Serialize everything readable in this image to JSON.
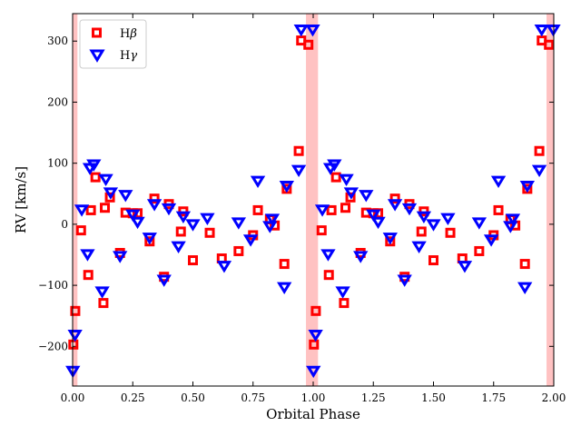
{
  "chart_data": {
    "type": "scatter",
    "title": "",
    "xlabel": "Orbital Phase",
    "ylabel": "RV [km/s]",
    "xlim": [
      0.0,
      2.0
    ],
    "ylim": [
      -265,
      345
    ],
    "xticks": [
      0.0,
      0.25,
      0.5,
      0.75,
      1.0,
      1.25,
      1.5,
      1.75,
      2.0
    ],
    "xtick_labels": [
      "0.00",
      "0.25",
      "0.50",
      "0.75",
      "1.00",
      "1.25",
      "1.50",
      "1.75",
      "2.00"
    ],
    "yticks": [
      -200,
      -100,
      0,
      100,
      200,
      300
    ],
    "ytick_labels": [
      "−200",
      "−100",
      "0",
      "100",
      "200",
      "300"
    ],
    "legend_position": "top-left",
    "eclipse_bands": [
      {
        "x0": 0.0,
        "x1": 0.02
      },
      {
        "x0": 0.97,
        "x1": 1.02
      },
      {
        "x0": 1.97,
        "x1": 2.0
      }
    ],
    "colors": {
      "hbeta": "#ff0000",
      "hgamma": "#0000ff",
      "band": "#ff9999"
    },
    "series": [
      {
        "name": "Hβ",
        "name_base": "H",
        "name_greek": "β",
        "marker": "square",
        "x": [
          0.003,
          0.011,
          0.035,
          0.065,
          0.076,
          0.095,
          0.128,
          0.134,
          0.155,
          0.197,
          0.22,
          0.25,
          0.27,
          0.32,
          0.34,
          0.38,
          0.4,
          0.45,
          0.46,
          0.5,
          0.57,
          0.62,
          0.69,
          0.75,
          0.77,
          0.82,
          0.84,
          0.88,
          0.89,
          0.94,
          0.95,
          0.98,
          1.003,
          1.011,
          1.035,
          1.065,
          1.076,
          1.095,
          1.128,
          1.134,
          1.155,
          1.197,
          1.22,
          1.25,
          1.27,
          1.32,
          1.34,
          1.38,
          1.4,
          1.45,
          1.46,
          1.5,
          1.57,
          1.62,
          1.69,
          1.75,
          1.77,
          1.82,
          1.84,
          1.88,
          1.89,
          1.94,
          1.95,
          1.98
        ],
        "y": [
          -197,
          -142,
          -10,
          -83,
          23,
          77,
          -129,
          27,
          44,
          -47,
          19,
          18,
          18,
          -28,
          42,
          -86,
          33,
          -12,
          21,
          -59,
          -14,
          -56,
          -44,
          -18,
          23,
          8,
          -2,
          -65,
          58,
          120,
          301,
          294,
          -197,
          -142,
          -10,
          -83,
          23,
          77,
          -129,
          27,
          44,
          -47,
          19,
          18,
          18,
          -28,
          42,
          -86,
          33,
          -12,
          21,
          -59,
          -14,
          -56,
          -44,
          -18,
          23,
          8,
          -2,
          -65,
          58,
          120,
          301,
          294
        ]
      },
      {
        "name": "Hγ",
        "name_base": "H",
        "name_greek": "γ",
        "marker": "triangle-down",
        "x": [
          0.001,
          0.01,
          0.038,
          0.062,
          0.072,
          0.088,
          0.123,
          0.138,
          0.158,
          0.197,
          0.22,
          0.25,
          0.27,
          0.32,
          0.34,
          0.38,
          0.4,
          0.44,
          0.46,
          0.5,
          0.56,
          0.63,
          0.69,
          0.74,
          0.77,
          0.82,
          0.83,
          0.88,
          0.89,
          0.94,
          0.95,
          0.998,
          1.001,
          1.01,
          1.038,
          1.062,
          1.072,
          1.088,
          1.123,
          1.138,
          1.158,
          1.197,
          1.22,
          1.25,
          1.27,
          1.32,
          1.34,
          1.38,
          1.4,
          1.44,
          1.46,
          1.5,
          1.56,
          1.63,
          1.69,
          1.74,
          1.77,
          1.82,
          1.83,
          1.88,
          1.89,
          1.94,
          1.95,
          1.998
        ],
        "y": [
          -240,
          -181,
          24,
          -49,
          92,
          98,
          -110,
          74,
          52,
          -52,
          48,
          16,
          4,
          -22,
          33,
          -91,
          26,
          -36,
          13,
          0,
          10,
          -68,
          3,
          -25,
          71,
          -3,
          9,
          -103,
          63,
          89,
          319,
          319,
          -240,
          -181,
          24,
          -49,
          92,
          98,
          -110,
          74,
          52,
          -52,
          48,
          16,
          4,
          -22,
          33,
          -91,
          26,
          -36,
          13,
          0,
          10,
          -68,
          3,
          -25,
          71,
          -3,
          9,
          -103,
          63,
          89,
          319,
          319
        ]
      }
    ]
  }
}
